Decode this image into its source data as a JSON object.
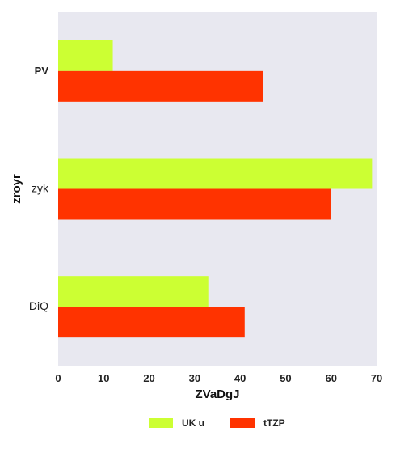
{
  "chart_data": {
    "type": "bar",
    "orientation": "horizontal",
    "categories": [
      "PV",
      "zyk",
      "DiQ"
    ],
    "series": [
      {
        "name": "UK u",
        "values": [
          12,
          69,
          33
        ],
        "color": "#ccff33"
      },
      {
        "name": "tTZP",
        "values": [
          45,
          60,
          41
        ],
        "color": "#ff3300"
      }
    ],
    "xlabel": "ZVaDgJ",
    "ylabel": "zroyr",
    "xlim": [
      0,
      70
    ],
    "xticks": [
      0,
      10,
      20,
      30,
      40,
      50,
      60,
      70
    ],
    "grid": false,
    "background": "#e8e8f0",
    "legend_position": "bottom"
  }
}
